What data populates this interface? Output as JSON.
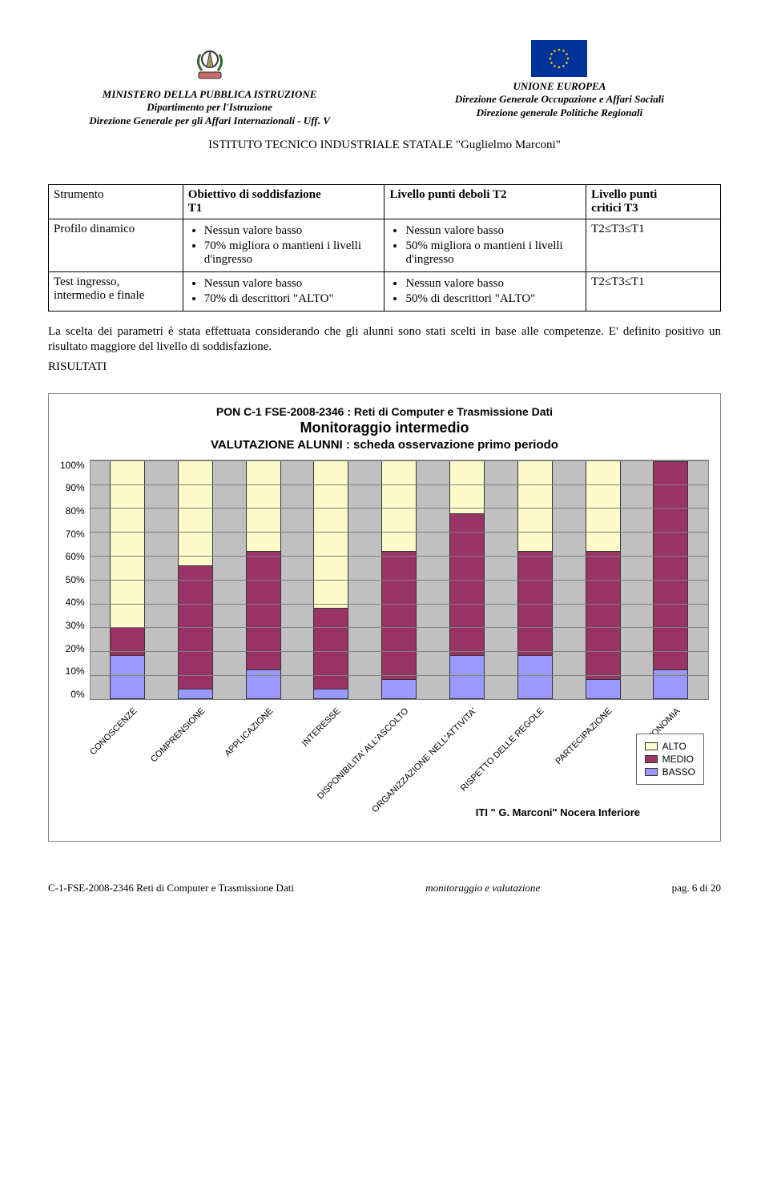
{
  "header": {
    "left": {
      "line1": "MINISTERO DELLA PUBBLICA ISTRUZIONE",
      "line2": "Dipartimento per l'Istruzione",
      "line3": "Direzione Generale per gli Affari Internazionali - Uff. V"
    },
    "right": {
      "line1": "UNIONE EUROPEA",
      "line2": "Direzione Generale Occupazione e Affari Sociali",
      "line3": "Direzione generale Politiche Regionali"
    },
    "institute": "ISTITUTO TECNICO INDUSTRIALE STATALE \"Guglielmo Marconi\""
  },
  "table": {
    "head": {
      "c1": "Strumento",
      "c2_a": "Obiettivo di soddisfazione",
      "c2_b": "T1",
      "c3": "Livello punti deboli T2",
      "c4_a": "Livello punti",
      "c4_b": "critici T3"
    },
    "rows": [
      {
        "c1": "Profilo dinamico",
        "c2": [
          "Nessun valore basso",
          "70% migliora o mantieni i livelli d'ingresso"
        ],
        "c3": [
          "Nessun valore basso",
          "50% migliora o mantieni i livelli d'ingresso"
        ],
        "c4": "T2≤T3≤T1"
      },
      {
        "c1_a": "Test ingresso,",
        "c1_b": "intermedio e finale",
        "c2": [
          "Nessun valore basso",
          "70% di descrittori \"ALTO\""
        ],
        "c3": [
          "Nessun valore basso",
          "50% di descrittori \"ALTO\""
        ],
        "c4": "T2≤T3≤T1"
      }
    ]
  },
  "para": "La scelta dei parametri è stata effettuata considerando che gli alunni sono stati scelti in base alle competenze. E' definito positivo un risultato maggiore del livello di soddisfazione.",
  "risultati": "RISULTATI",
  "chart": {
    "type": "stacked-bar-100",
    "title1": "PON C-1 FSE-2008-2346 : Reti di Computer e Trasmissione Dati",
    "title2": "Monitoraggio intermedio",
    "title3": "VALUTAZIONE ALUNNI : scheda osservazione primo periodo",
    "y_ticks": [
      "100%",
      "90%",
      "80%",
      "70%",
      "60%",
      "50%",
      "40%",
      "30%",
      "20%",
      "10%",
      "0%"
    ],
    "categories": [
      "CONOSCENZE",
      "COMPRENSIONE",
      "APPLICAZIONE",
      "INTERESSE",
      "DISPONIBILITA' ALL'ASCOLTO",
      "ORGANIZZAZIONE NELL'ATTIVITA'",
      "RISPETTO DELLE REGOLE",
      "PARTECIPAZIONE",
      "AUTONOMIA"
    ],
    "series": [
      {
        "name": "ALTO",
        "color": "#fbfac8"
      },
      {
        "name": "MEDIO",
        "color": "#993366"
      },
      {
        "name": "BASSO",
        "color": "#9999ff"
      }
    ],
    "values": [
      {
        "alto": 70,
        "medio": 12,
        "basso": 18
      },
      {
        "alto": 44,
        "medio": 52,
        "basso": 4
      },
      {
        "alto": 38,
        "medio": 50,
        "basso": 12
      },
      {
        "alto": 62,
        "medio": 34,
        "basso": 4
      },
      {
        "alto": 38,
        "medio": 54,
        "basso": 8
      },
      {
        "alto": 22,
        "medio": 60,
        "basso": 18
      },
      {
        "alto": 38,
        "medio": 44,
        "basso": 18
      },
      {
        "alto": 38,
        "medio": 54,
        "basso": 8
      },
      {
        "alto": 0,
        "medio": 88,
        "basso": 12
      }
    ],
    "plot_bg": "#c0c0c0",
    "grid_color": "#808080",
    "legend_labels": {
      "alto": "ALTO",
      "medio": "MEDIO",
      "basso": "BASSO"
    },
    "footer": "ITI \" G. Marconi\" Nocera Inferiore"
  },
  "footer": {
    "left": "C-1-FSE-2008-2346 Reti di Computer e Trasmissione Dati",
    "center": "monitoraggio e valutazione",
    "right": "pag. 6 di 20"
  }
}
